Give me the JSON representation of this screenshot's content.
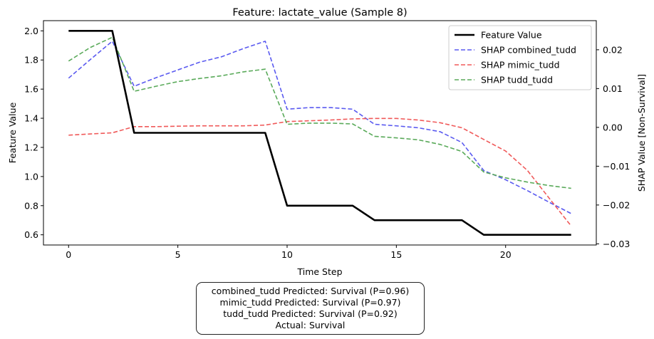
{
  "chart_data": {
    "type": "line",
    "title": "Feature: lactate_value (Sample 8)",
    "xlabel": "Time Step",
    "ylabel": "Feature Value",
    "y2label": "SHAP Value [Non-Survival]",
    "xlim": [
      -1.15,
      24.15
    ],
    "ylim": [
      0.53,
      2.07
    ],
    "y2lim": [
      -0.0303,
      0.0275
    ],
    "xticks": [
      0,
      5,
      10,
      15,
      20
    ],
    "yticks": [
      0.6,
      0.8,
      1.0,
      1.2,
      1.4,
      1.6,
      1.8,
      2.0
    ],
    "y2ticks": [
      -0.03,
      -0.02,
      -0.01,
      0.0,
      0.01,
      0.02
    ],
    "x": [
      0,
      1,
      2,
      3,
      4,
      5,
      6,
      7,
      8,
      9,
      10,
      11,
      12,
      13,
      14,
      15,
      16,
      17,
      18,
      19,
      20,
      21,
      22,
      23
    ],
    "series": [
      {
        "name": "Feature Value",
        "axis": "left",
        "color": "#000000",
        "style": "solid",
        "values": [
          2.0,
          2.0,
          2.0,
          1.3,
          1.3,
          1.3,
          1.3,
          1.3,
          1.3,
          1.3,
          0.8,
          0.8,
          0.8,
          0.8,
          0.7,
          0.7,
          0.7,
          0.7,
          0.7,
          0.6,
          0.6,
          0.6,
          0.6,
          0.6
        ]
      },
      {
        "name": "SHAP combined_tudd",
        "axis": "right",
        "color": "#5a5af0",
        "style": "dashed",
        "values": [
          0.0127,
          0.0175,
          0.0222,
          0.0106,
          0.0128,
          0.0148,
          0.0168,
          0.0182,
          0.0203,
          0.0222,
          0.0047,
          0.0051,
          0.0051,
          0.0047,
          0.0008,
          0.0004,
          -0.0001,
          -0.0011,
          -0.0039,
          -0.0111,
          -0.0135,
          -0.0163,
          -0.0193,
          -0.0222
        ]
      },
      {
        "name": "SHAP mimic_tudd",
        "axis": "right",
        "color": "#f05a5a",
        "style": "dashed",
        "values": [
          -0.002,
          -0.0017,
          -0.0014,
          0.0002,
          0.0002,
          0.0003,
          0.0004,
          0.0004,
          0.0004,
          0.0006,
          0.0015,
          0.0017,
          0.0019,
          0.0022,
          0.0023,
          0.0023,
          0.0019,
          0.0012,
          -0.0001,
          -0.0031,
          -0.0061,
          -0.0111,
          -0.0183,
          -0.0254
        ]
      },
      {
        "name": "SHAP tudd_tudd",
        "axis": "right",
        "color": "#5aaa5a",
        "style": "dashed",
        "values": [
          0.0171,
          0.0206,
          0.0232,
          0.0093,
          0.0106,
          0.0118,
          0.0126,
          0.0133,
          0.0143,
          0.015,
          0.0008,
          0.0011,
          0.0011,
          0.0009,
          -0.0023,
          -0.0027,
          -0.0032,
          -0.0044,
          -0.0062,
          -0.0115,
          -0.013,
          -0.0141,
          -0.015,
          -0.0157
        ]
      }
    ],
    "legend_position": "top-right",
    "grid": false
  },
  "info": {
    "line1": "combined_tudd Predicted: Survival (P=0.96)",
    "line2": "mimic_tudd Predicted: Survival (P=0.97)",
    "line3": "tudd_tudd Predicted: Survival (P=0.92)",
    "line4": "Actual: Survival"
  }
}
